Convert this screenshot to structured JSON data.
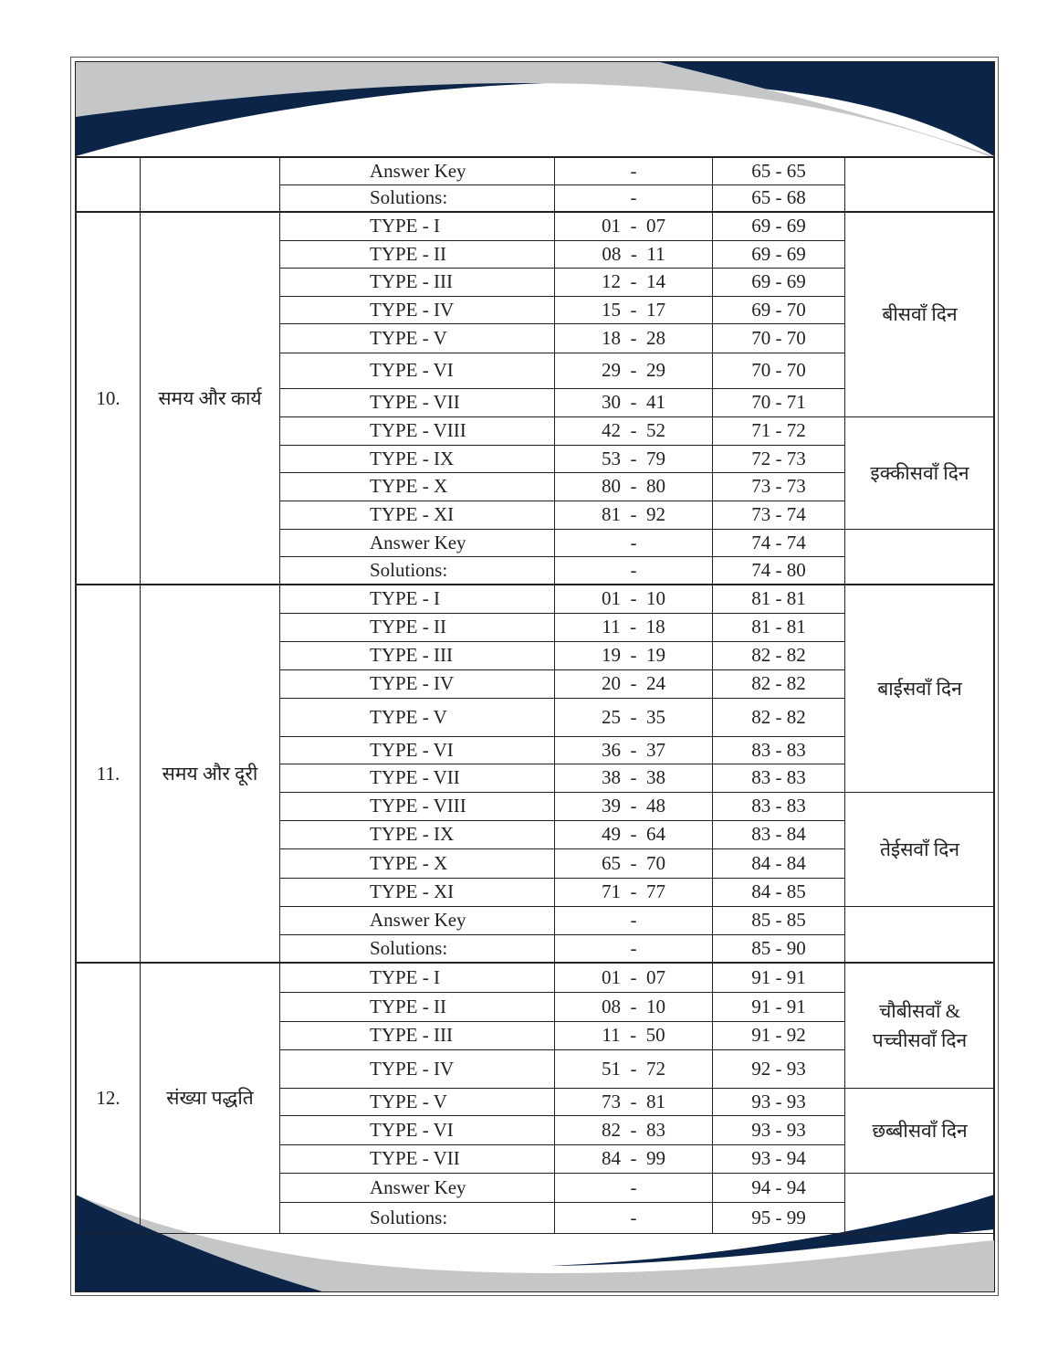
{
  "colors": {
    "navy": "#0b2447",
    "gray": "#c4c6c8"
  },
  "sections": [
    {
      "num": "",
      "topic": "",
      "rows": [
        {
          "type": "Answer Key",
          "range": "-",
          "pages": "65 - 65"
        },
        {
          "type": "Solutions:",
          "range": "-",
          "pages": "65 - 68"
        }
      ],
      "days": [
        {
          "label": "",
          "span": 2
        }
      ]
    },
    {
      "num": "10.",
      "topic": "समय और कार्य",
      "rows": [
        {
          "type": "TYPE - I",
          "range": "01  -  07",
          "pages": "69 - 69"
        },
        {
          "type": "TYPE - II",
          "range": "08  -  11",
          "pages": "69 - 69"
        },
        {
          "type": "TYPE - III",
          "range": "12  -  14",
          "pages": "69 - 69"
        },
        {
          "type": "TYPE - IV",
          "range": "15  -  17",
          "pages": "69 - 70"
        },
        {
          "type": "TYPE - V",
          "range": "18  -  28",
          "pages": "70 - 70"
        },
        {
          "type": "TYPE - VI",
          "range": "29  -  29",
          "pages": "70 - 70"
        },
        {
          "type": "TYPE - VII",
          "range": "30  -  41",
          "pages": "70 - 71"
        },
        {
          "type": "TYPE - VIII",
          "range": "42  -  52",
          "pages": "71 - 72"
        },
        {
          "type": "TYPE - IX",
          "range": "53  -  79",
          "pages": "72 - 73"
        },
        {
          "type": "TYPE - X",
          "range": "80  -  80",
          "pages": "73 - 73"
        },
        {
          "type": "TYPE - XI",
          "range": "81  -  92",
          "pages": "73 - 74"
        },
        {
          "type": "Answer Key",
          "range": "-",
          "pages": "74 - 74"
        },
        {
          "type": "Solutions:",
          "range": "-",
          "pages": "74 - 80"
        }
      ],
      "days": [
        {
          "label": "बीसवाँ दिन",
          "span": 7
        },
        {
          "label": "इक्कीसवाँ दिन",
          "span": 4
        },
        {
          "label": "",
          "span": 2
        }
      ]
    },
    {
      "num": "11.",
      "topic": "समय और दूरी",
      "rows": [
        {
          "type": "TYPE - I",
          "range": "01  -  10",
          "pages": "81 - 81"
        },
        {
          "type": "TYPE - II",
          "range": "11  -  18",
          "pages": "81 - 81"
        },
        {
          "type": "TYPE - III",
          "range": "19  -  19",
          "pages": "82 - 82"
        },
        {
          "type": "TYPE - IV",
          "range": "20  -  24",
          "pages": "82 - 82"
        },
        {
          "type": "TYPE - V",
          "range": "25  -  35",
          "pages": "82 - 82"
        },
        {
          "type": "TYPE - VI",
          "range": "36  -  37",
          "pages": "83 - 83"
        },
        {
          "type": "TYPE - VII",
          "range": "38  -  38",
          "pages": "83 - 83"
        },
        {
          "type": "TYPE - VIII",
          "range": "39  -  48",
          "pages": "83 - 83"
        },
        {
          "type": "TYPE - IX",
          "range": "49  -  64",
          "pages": "83 - 84"
        },
        {
          "type": "TYPE - X",
          "range": "65  -  70",
          "pages": "84 - 84"
        },
        {
          "type": "TYPE - XI",
          "range": "71  -  77",
          "pages": "84 - 85"
        },
        {
          "type": "Answer Key",
          "range": "-",
          "pages": "85 - 85"
        },
        {
          "type": "Solutions:",
          "range": "-",
          "pages": "85 - 90"
        }
      ],
      "days": [
        {
          "label": "बाईसवाँ दिन",
          "span": 7
        },
        {
          "label": "तेईसवाँ दिन",
          "span": 4
        },
        {
          "label": "",
          "span": 2
        }
      ]
    },
    {
      "num": "12.",
      "topic": "संख्या पद्धति",
      "rows": [
        {
          "type": "TYPE - I",
          "range": "01  -  07",
          "pages": "91 - 91"
        },
        {
          "type": "TYPE - II",
          "range": "08  -  10",
          "pages": "91 - 91"
        },
        {
          "type": "TYPE - III",
          "range": "11  -  50",
          "pages": "91 - 92"
        },
        {
          "type": "TYPE - IV",
          "range": "51  -  72",
          "pages": "92 - 93"
        },
        {
          "type": "TYPE - V",
          "range": "73  -  81",
          "pages": "93 - 93"
        },
        {
          "type": "TYPE - VI",
          "range": "82  -  83",
          "pages": "93 - 93"
        },
        {
          "type": "TYPE - VII",
          "range": "84  -  99",
          "pages": "93 - 94"
        },
        {
          "type": "Answer Key",
          "range": "-",
          "pages": "94 - 94"
        },
        {
          "type": "Solutions:",
          "range": "-",
          "pages": "95 - 99"
        }
      ],
      "days": [
        {
          "label": "चौबीसवाँ & पच्चीसवाँ  दिन",
          "span": 4
        },
        {
          "label": "छब्बीसवाँ दिन",
          "span": 3
        },
        {
          "label": "",
          "span": 2
        }
      ]
    }
  ]
}
